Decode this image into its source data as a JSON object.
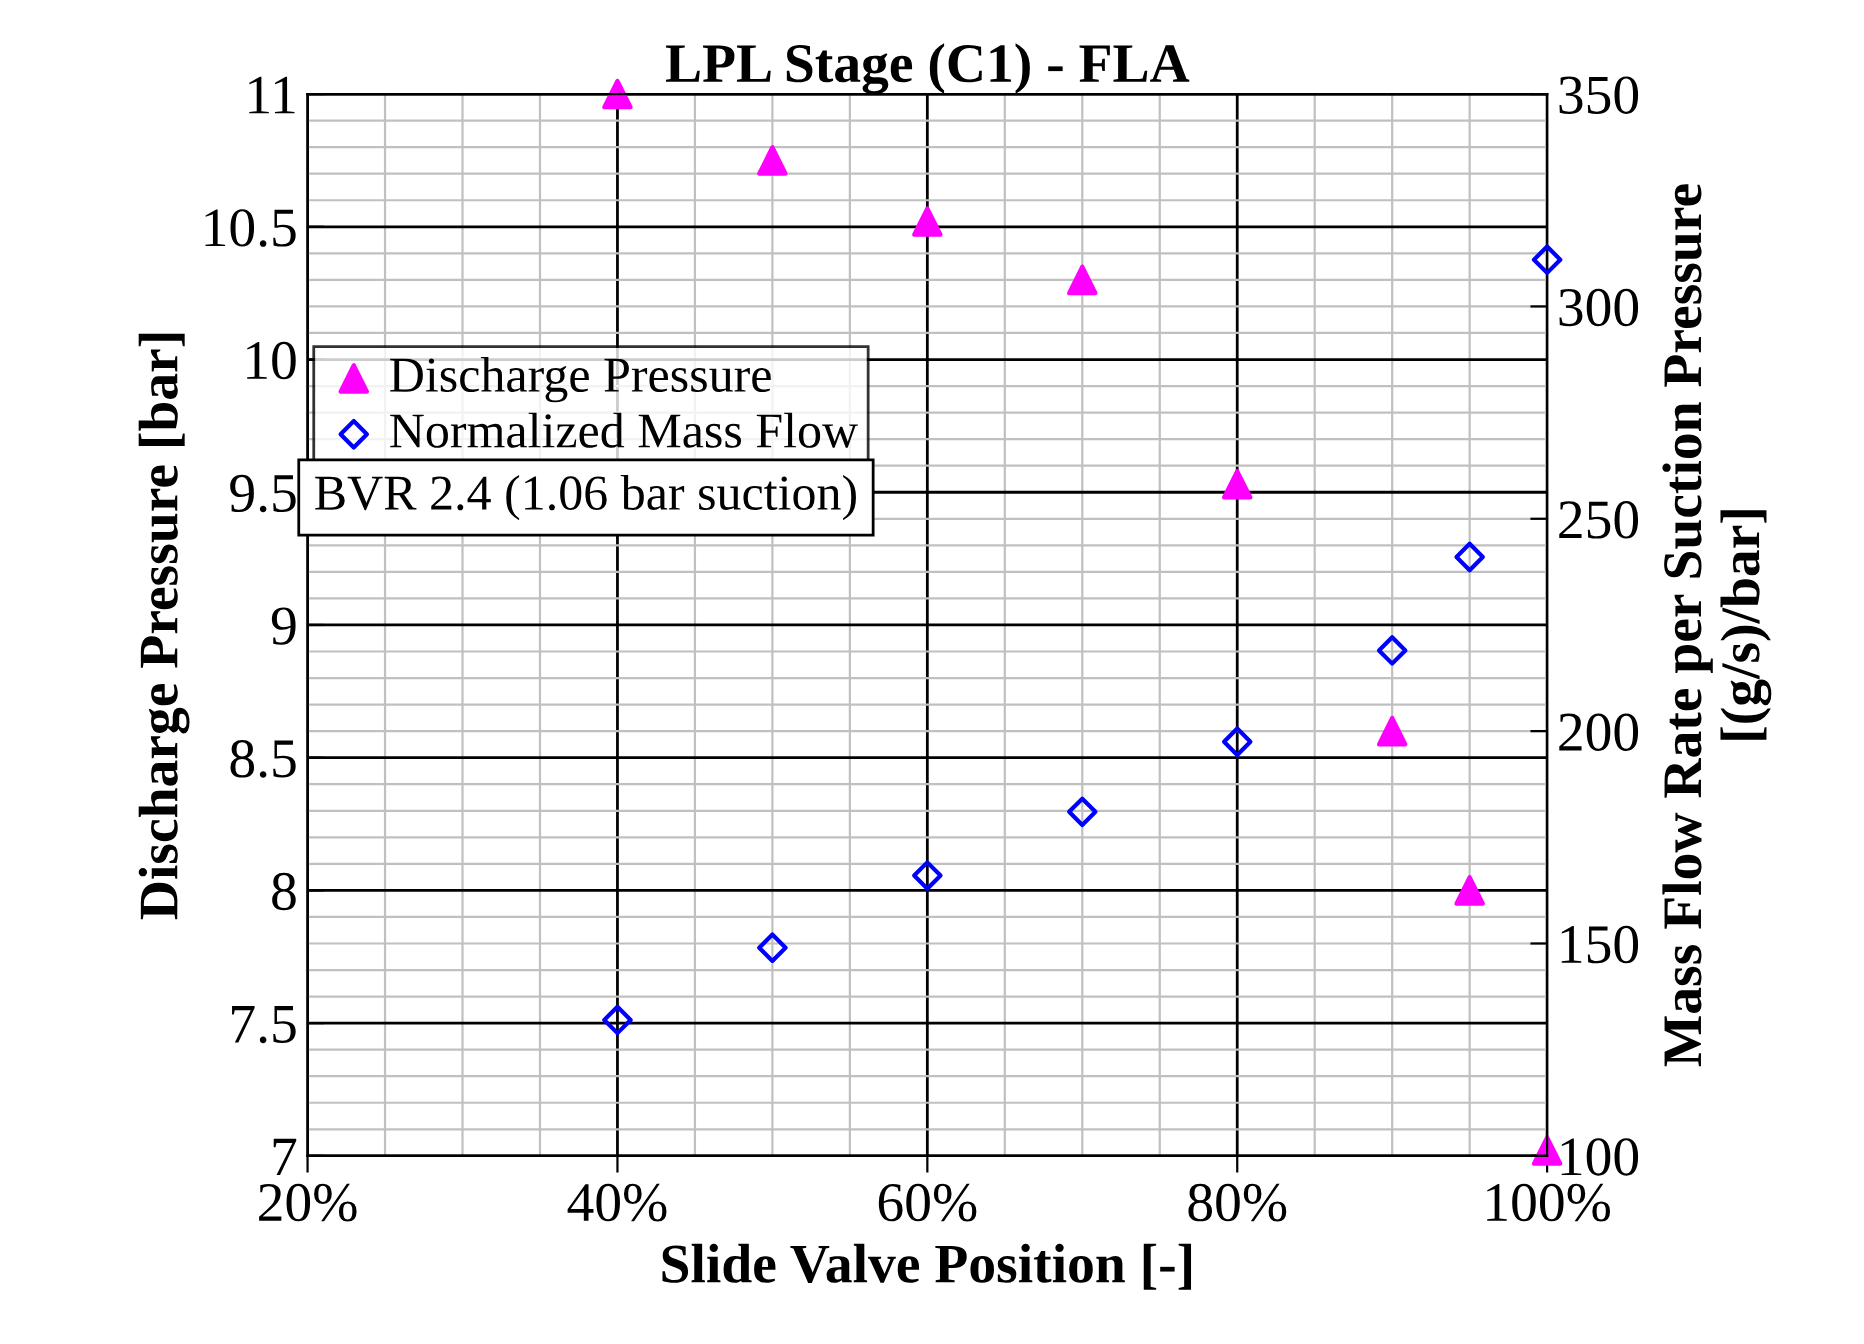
{
  "chart_data": {
    "type": "scatter",
    "title": "LPL Stage (C1) - FLA",
    "xlabel": "Slide Valve Position [-]",
    "ylabel": "Discharge Pressure [bar]",
    "y2label": "Mass Flow Rate per Suction Pressure\n[(g/s)/bar]",
    "x": [
      40,
      50,
      60,
      70,
      80,
      90,
      95,
      100
    ],
    "series": [
      {
        "name": "Discharge Pressure",
        "color": "#ff00ff",
        "marker": "triangle",
        "values": [
          11.0,
          10.75,
          10.52,
          10.3,
          9.53,
          8.6,
          8.0,
          7.02
        ]
      },
      {
        "name": "Normalized Mass Flow",
        "color": "#0000ff",
        "marker": "diamond",
        "axis": "y2",
        "values": [
          132,
          149,
          166,
          181,
          197.5,
          219,
          241,
          311
        ]
      }
    ],
    "xlim": [
      20,
      100
    ],
    "xticks": [
      {
        "value": 20,
        "label": "20%"
      },
      {
        "value": 40,
        "label": "40%"
      },
      {
        "value": 60,
        "label": "60%"
      },
      {
        "value": 80,
        "label": "80%"
      },
      {
        "value": 100,
        "label": "100%"
      }
    ],
    "ylim": [
      7,
      11
    ],
    "yticks": [
      7,
      7.5,
      8,
      8.5,
      9,
      9.5,
      10,
      10.5,
      11
    ],
    "y2lim": [
      100,
      350
    ],
    "y2ticks": [
      100,
      150,
      200,
      250,
      300,
      350
    ],
    "grid": true,
    "legend": "left",
    "annotations": [
      "BVR 2.4 (1.06 bar suction)"
    ]
  }
}
